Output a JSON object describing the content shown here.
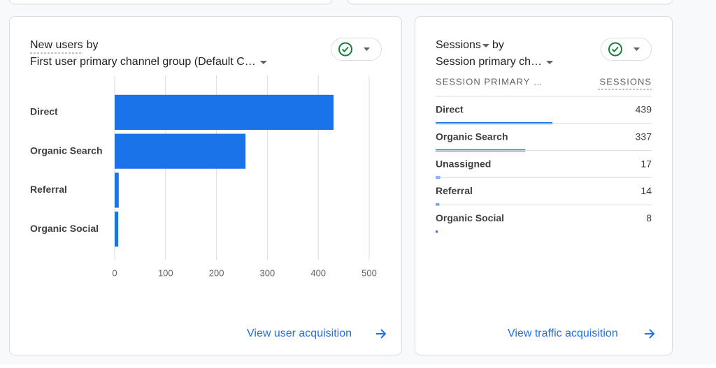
{
  "new_users_card": {
    "title_metric": "New users",
    "title_by": "by",
    "dimension": "First user primary channel group (Default C…",
    "link": "View user acquisition"
  },
  "chart_data": {
    "type": "bar",
    "orientation": "horizontal",
    "categories": [
      "Direct",
      "Organic Search",
      "Referral",
      "Organic Social"
    ],
    "values": [
      430,
      257,
      8,
      7
    ],
    "color": "#1a73e8",
    "xlim": [
      0,
      500
    ],
    "xticks": [
      0,
      100,
      200,
      300,
      400,
      500
    ],
    "grid": true
  },
  "sessions_card": {
    "title_metric": "Sessions",
    "title_by": "by",
    "dimension": "Session primary ch…",
    "columns": [
      "SESSION PRIMARY …",
      "SESSIONS"
    ],
    "rows": [
      [
        "Direct",
        439
      ],
      [
        "Organic Search",
        337
      ],
      [
        "Unassigned",
        17
      ],
      [
        "Referral",
        14
      ],
      [
        "Organic Social",
        8
      ]
    ],
    "link": "View traffic acquisition"
  }
}
